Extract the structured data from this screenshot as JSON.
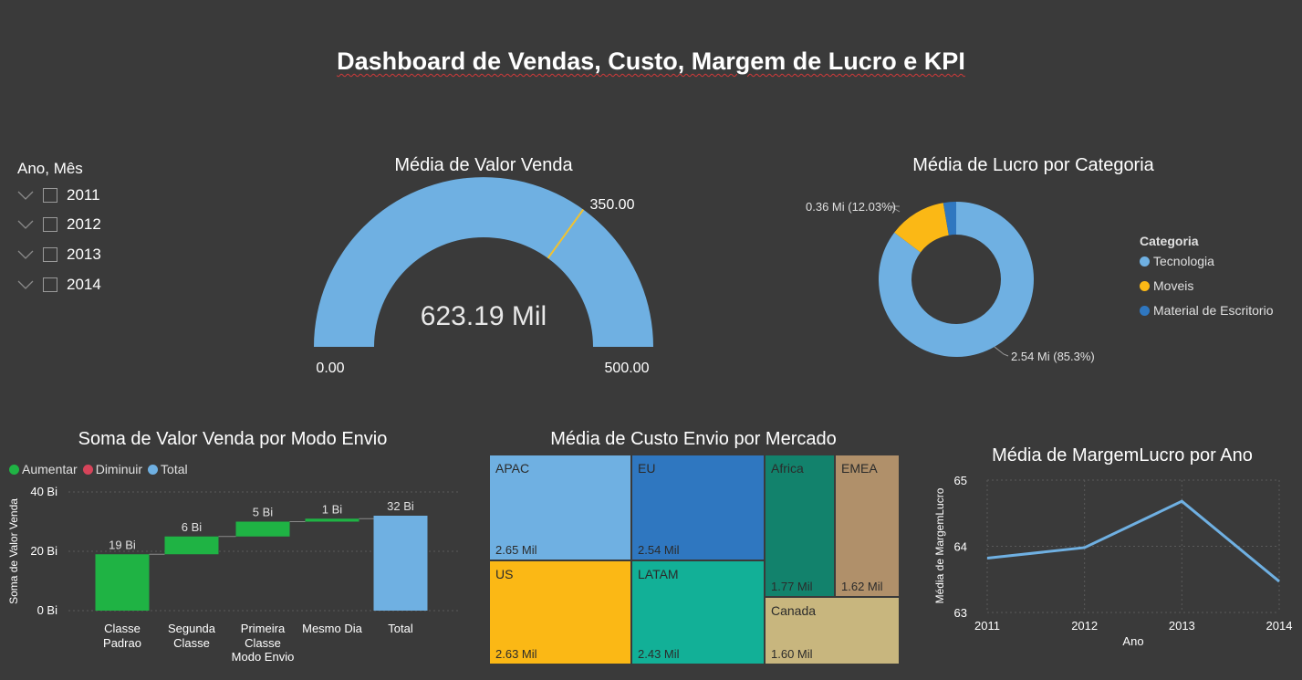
{
  "page": {
    "title": "Dashboard de Vendas, Custo, Margem de Lucro e KPI"
  },
  "slicer": {
    "title": "Ano, Mês",
    "items": [
      {
        "label": "2011"
      },
      {
        "label": "2012"
      },
      {
        "label": "2013"
      },
      {
        "label": "2014"
      }
    ]
  },
  "gauge": {
    "title": "Média de Valor Venda",
    "value_label": "623.19 Mil",
    "min_label": "0.00",
    "max_label": "500.00",
    "target_label": "350.00",
    "min": 0,
    "max": 500,
    "target": 350,
    "value": 623.19,
    "color": "#6fb0e2",
    "target_color": "#f2c22e"
  },
  "donut": {
    "title": "Média de Lucro por Categoria",
    "legend_title": "Categoria",
    "label_big": "2.54 Mi (85.3%)",
    "label_small": "0.36 Mi (12.03%)",
    "segments": [
      {
        "name": "Tecnologia",
        "percent": 85.3,
        "color": "#6fb0e2"
      },
      {
        "name": "Moveis",
        "percent": 12.03,
        "color": "#fbb815"
      },
      {
        "name": "Material de Escritorio",
        "percent": 2.67,
        "color": "#2f77c0"
      }
    ]
  },
  "waterfall": {
    "title": "Soma de Valor Venda por Modo Envio",
    "legend": [
      {
        "label": "Aumentar",
        "color": "#1fb344"
      },
      {
        "label": "Diminuir",
        "color": "#d6445a"
      },
      {
        "label": "Total",
        "color": "#6fb0e2"
      }
    ],
    "ylabel": "Soma de Valor Venda",
    "xlabel": "Modo Envio",
    "yticks": [
      "0 Bi",
      "20 Bi",
      "40 Bi"
    ]
  },
  "treemap": {
    "title": "Média de Custo Envio por Mercado",
    "tiles": [
      {
        "name": "APAC",
        "value": "2.65 Mil",
        "color": "#6fb0e2"
      },
      {
        "name": "EU",
        "value": "2.54 Mil",
        "color": "#2f77c0"
      },
      {
        "name": "US",
        "value": "2.63 Mil",
        "color": "#fbb815"
      },
      {
        "name": "LATAM",
        "value": "2.43 Mil",
        "color": "#12b097"
      },
      {
        "name": "Africa",
        "value": "1.77 Mil",
        "color": "#12826c"
      },
      {
        "name": "EMEA",
        "value": "1.62 Mil",
        "color": "#b0906a"
      },
      {
        "name": "Canada",
        "value": "1.60 Mil",
        "color": "#c8b67e"
      }
    ]
  },
  "line": {
    "title": "Média de MargemLucro por Ano",
    "xlabel": "Ano",
    "ylabel": "Média de MargemLucro",
    "color": "#6fb0e2"
  },
  "chart_data": [
    {
      "type": "gauge",
      "title": "Média de Valor Venda",
      "value": 623.19,
      "value_unit": "Mil",
      "min": 0,
      "max": 500,
      "target": 350
    },
    {
      "type": "pie",
      "title": "Média de Lucro por Categoria",
      "categories": [
        "Tecnologia",
        "Moveis",
        "Material de Escritorio"
      ],
      "values": [
        2.54,
        0.36,
        0.08
      ],
      "percent": [
        85.3,
        12.03,
        2.67
      ],
      "unit": "Mi",
      "legend_position": "right"
    },
    {
      "type": "bar",
      "subtype": "waterfall",
      "title": "Soma de Valor Venda por Modo Envio",
      "categories": [
        "Classe Padrao",
        "Segunda Classe",
        "Primeira Classe",
        "Mesmo Dia",
        "Total"
      ],
      "values": [
        19,
        6,
        5,
        1,
        32
      ],
      "data_labels": [
        "19 Bi",
        "6 Bi",
        "5 Bi",
        "1 Bi",
        "32 Bi"
      ],
      "kinds": [
        "increase",
        "increase",
        "increase",
        "increase",
        "total"
      ],
      "xlabel": "Modo Envio",
      "ylabel": "Soma de Valor Venda",
      "ylim": [
        0,
        40
      ],
      "yticks": [
        0,
        20,
        40
      ],
      "ytick_labels": [
        "0 Bi",
        "20 Bi",
        "40 Bi"
      ],
      "grid": true,
      "legend_position": "top-left"
    },
    {
      "type": "treemap",
      "title": "Média de Custo Envio por Mercado",
      "categories": [
        "APAC",
        "EU",
        "US",
        "LATAM",
        "Africa",
        "EMEA",
        "Canada"
      ],
      "values": [
        2.65,
        2.54,
        2.63,
        2.43,
        1.77,
        1.62,
        1.6
      ],
      "unit": "Mil"
    },
    {
      "type": "line",
      "title": "Média de MargemLucro por Ano",
      "x": [
        "2011",
        "2012",
        "2013",
        "2014"
      ],
      "y": [
        63.82,
        63.98,
        64.68,
        63.47
      ],
      "xlabel": "Ano",
      "ylabel": "Média de MargemLucro",
      "ylim": [
        63,
        65
      ],
      "yticks": [
        63,
        64,
        65
      ],
      "grid": true
    }
  ]
}
